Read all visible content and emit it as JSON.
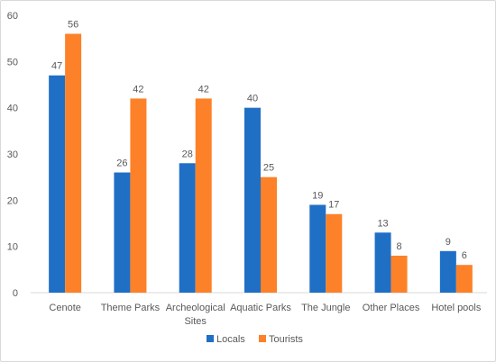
{
  "chart_data": {
    "type": "bar",
    "categories": [
      "Cenote",
      "Theme Parks",
      "Archeological Sites",
      "Aquatic Parks",
      "The Jungle",
      "Other Places",
      "Hotel pools"
    ],
    "series": [
      {
        "name": "Locals",
        "values": [
          47,
          26,
          28,
          40,
          19,
          13,
          9
        ],
        "color": "#1f6fc5"
      },
      {
        "name": "Tourists",
        "values": [
          56,
          42,
          42,
          25,
          17,
          8,
          6
        ],
        "color": "#fd8128"
      }
    ],
    "title": "",
    "xlabel": "",
    "ylabel": "",
    "ylim": [
      0,
      60
    ],
    "yticks": [
      "0",
      "10",
      "20",
      "30",
      "40",
      "50",
      "60"
    ],
    "grid": false,
    "legend": "bottom-center"
  }
}
